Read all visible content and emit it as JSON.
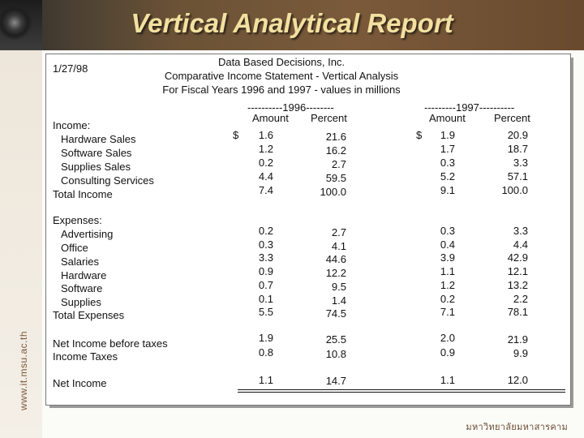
{
  "slide": {
    "title": "Vertical Analytical Report",
    "side_url": "www.it.msu.ac.th",
    "footer": "มหาวิทยาลัยมหาสารคาม"
  },
  "report": {
    "date": "1/27/98",
    "company": "Data Based Decisions, Inc.",
    "statement": "Comparative Income Statement - Vertical Analysis",
    "period": "For Fiscal Years 1996 and 1997 - values in millions",
    "year1_header": "----------1996--------",
    "year2_header": "---------1997----------",
    "col_amount": "Amount",
    "col_percent": "Percent",
    "currency": "$",
    "sections": {
      "income_label": "Income:",
      "expenses_label": "Expenses:"
    },
    "rows": {
      "hardware_sales": {
        "label": "Hardware Sales",
        "a96": "1.6",
        "p96": "21.6",
        "a97": "1.9",
        "p97": "20.9"
      },
      "software_sales": {
        "label": "Software Sales",
        "a96": "1.2",
        "p96": "16.2",
        "a97": "1.7",
        "p97": "18.7"
      },
      "supplies_sales": {
        "label": "Supplies Sales",
        "a96": "0.2",
        "p96": "2.7",
        "a97": "0.3",
        "p97": "3.3"
      },
      "consulting_services": {
        "label": "Consulting Services",
        "a96": "4.4",
        "p96": "59.5",
        "a97": "5.2",
        "p97": "57.1"
      },
      "total_income": {
        "label": "Total Income",
        "a96": "7.4",
        "p96": "100.0",
        "a97": "9.1",
        "p97": "100.0"
      },
      "advertising": {
        "label": "Advertising",
        "a96": "0.2",
        "p96": "2.7",
        "a97": "0.3",
        "p97": "3.3"
      },
      "office": {
        "label": "Office",
        "a96": "0.3",
        "p96": "4.1",
        "a97": "0.4",
        "p97": "4.4"
      },
      "salaries": {
        "label": "Salaries",
        "a96": "3.3",
        "p96": "44.6",
        "a97": "3.9",
        "p97": "42.9"
      },
      "hardware": {
        "label": "Hardware",
        "a96": "0.9",
        "p96": "12.2",
        "a97": "1.1",
        "p97": "12.1"
      },
      "software": {
        "label": "Software",
        "a96": "0.7",
        "p96": "9.5",
        "a97": "1.2",
        "p97": "13.2"
      },
      "supplies": {
        "label": "Supplies",
        "a96": "0.1",
        "p96": "1.4",
        "a97": "0.2",
        "p97": "2.2"
      },
      "total_expenses": {
        "label": "Total Expenses",
        "a96": "5.5",
        "p96": "74.5",
        "a97": "7.1",
        "p97": "78.1"
      },
      "net_before_taxes": {
        "label": "Net Income before taxes",
        "a96": "1.9",
        "p96": "25.5",
        "a97": "2.0",
        "p97": "21.9"
      },
      "income_taxes": {
        "label": "Income Taxes",
        "a96": "0.8",
        "p96": "10.8",
        "a97": "0.9",
        "p97": "9.9"
      },
      "net_income": {
        "label": "Net Income",
        "a96": "1.1",
        "p96": "14.7",
        "a97": "1.1",
        "p97": "12.0"
      }
    }
  }
}
